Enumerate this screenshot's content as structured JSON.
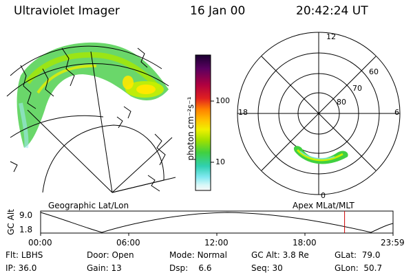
{
  "header": {
    "instrument": "Ultraviolet Imager",
    "date": "16 Jan 00",
    "time": "20:42:24 UT"
  },
  "geo_panel": {
    "label": "Geographic Lat/Lon"
  },
  "colorbar": {
    "unit_label": "photon cm⁻²s⁻¹",
    "ticks": [
      "100",
      "10"
    ],
    "colors": [
      "#1a0030",
      "#5a0060",
      "#b00040",
      "#e02020",
      "#ff8000",
      "#ffc000",
      "#f0f000",
      "#a0e000",
      "#40d040",
      "#30d0b0",
      "#80e8f0",
      "#d8f8f8",
      "#f8f8f8"
    ]
  },
  "polar_panel": {
    "label": "Apex MLat/MLT",
    "mlt_labels": {
      "top": "12",
      "left": "18",
      "right": "6",
      "bottom": "0"
    },
    "lat_labels": [
      "60",
      "70",
      "80"
    ]
  },
  "altitude_plot": {
    "y_label": "GC Alt",
    "y_ticks": [
      "9.0",
      "1.8"
    ],
    "x_ticks": [
      "00:00",
      "06:00",
      "12:00",
      "18:00",
      "23:59"
    ],
    "current_time_hours": 20.7
  },
  "info": {
    "flt_label": "Flt:",
    "flt_value": "LBHS",
    "ip_label": "IP:",
    "ip_value": "36.0",
    "door_label": "Door:",
    "door_value": "Open",
    "gain_label": "Gain:",
    "gain_value": "13",
    "mode_label": "Mode:",
    "mode_value": "Normal",
    "dsp_label": "Dsp:",
    "dsp_value": "6.6",
    "gcalt_label": "GC Alt:",
    "gcalt_value": "3.8 Re",
    "seq_label": "Seq:",
    "seq_value": "30",
    "glat_label": "GLat:",
    "glat_value": "79.0",
    "glon_label": "GLon:",
    "glon_value": "50.7"
  }
}
